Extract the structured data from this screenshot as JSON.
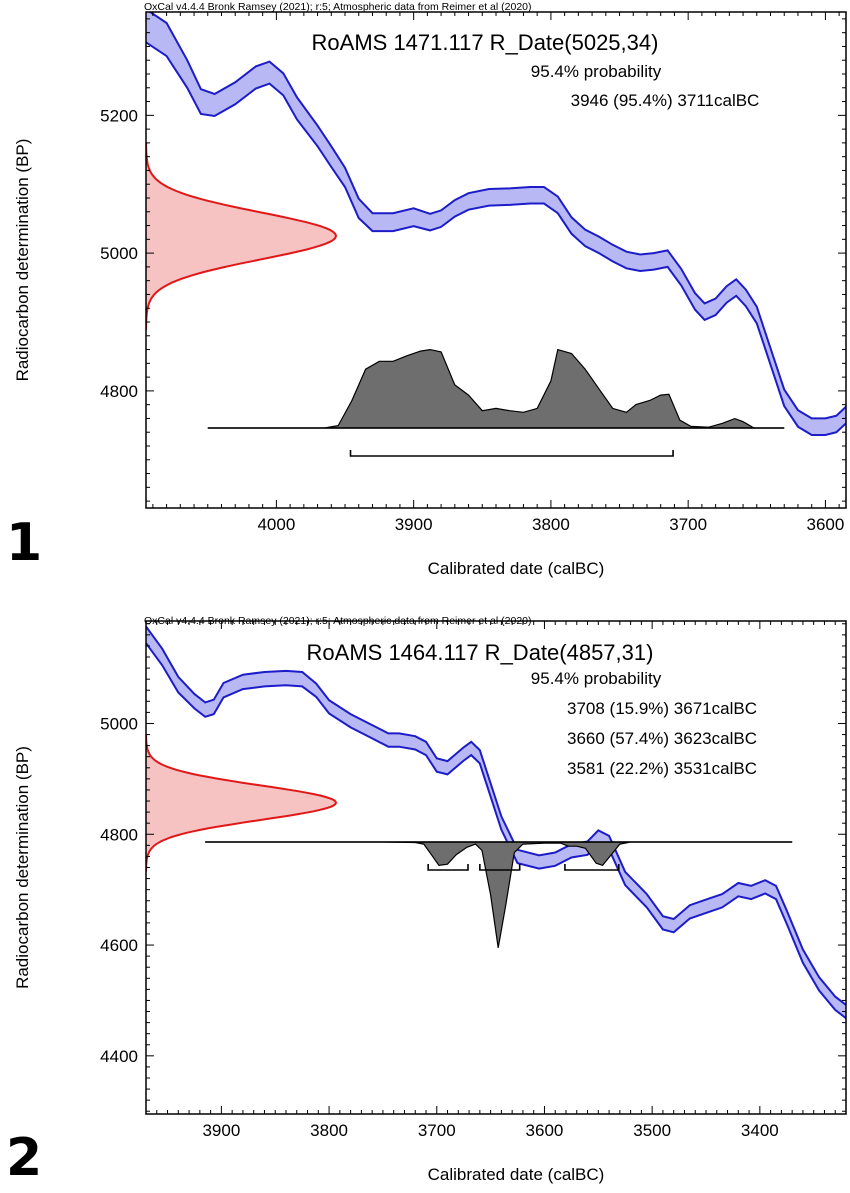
{
  "colors": {
    "curve_fill": "#b8b8f4",
    "curve_stroke": "#1c1cc8",
    "measured_fill": "#f6c2c2",
    "measured_stroke": "#e01818",
    "posterior_fill": "#6e6e6e",
    "frame": "#000000"
  },
  "chart_data": [
    {
      "type": "area",
      "panel_number": "1",
      "header": "OxCal v4.4.4 Bronk Ramsey (2021); r:5; Atmospheric data from Reimer et al (2020)",
      "title": "RoAMS 1471.117 R_Date(5025,34)",
      "probability_heading": "95.4% probability",
      "ranges_text": [
        "3946 (95.4%) 3711calBC"
      ],
      "ranges": [
        {
          "from": 3946,
          "to": 3711,
          "prob": 95.4
        }
      ],
      "xlabel": "Calibrated date (calBC)",
      "ylabel": "Radiocarbon determination (BP)",
      "xlim": [
        4095,
        3585
      ],
      "ylim": [
        4630,
        5350
      ],
      "xticks": [
        4000,
        3900,
        3800,
        3700,
        3600
      ],
      "yticks": [
        4800,
        5000,
        5200
      ],
      "measurement": {
        "mean": 5025,
        "sd": 34,
        "peak_date": 3955
      },
      "calibration_curve": [
        {
          "x": 4095,
          "y": 5330,
          "e": 24
        },
        {
          "x": 4080,
          "y": 5310,
          "e": 24
        },
        {
          "x": 4065,
          "y": 5260,
          "e": 20
        },
        {
          "x": 4055,
          "y": 5220,
          "e": 18
        },
        {
          "x": 4045,
          "y": 5215,
          "e": 16
        },
        {
          "x": 4030,
          "y": 5232,
          "e": 16
        },
        {
          "x": 4015,
          "y": 5255,
          "e": 16
        },
        {
          "x": 4005,
          "y": 5262,
          "e": 16
        },
        {
          "x": 3995,
          "y": 5245,
          "e": 16
        },
        {
          "x": 3985,
          "y": 5210,
          "e": 16
        },
        {
          "x": 3970,
          "y": 5170,
          "e": 15
        },
        {
          "x": 3960,
          "y": 5140,
          "e": 15
        },
        {
          "x": 3950,
          "y": 5110,
          "e": 14
        },
        {
          "x": 3940,
          "y": 5065,
          "e": 14
        },
        {
          "x": 3930,
          "y": 5045,
          "e": 13
        },
        {
          "x": 3915,
          "y": 5045,
          "e": 13
        },
        {
          "x": 3900,
          "y": 5052,
          "e": 13
        },
        {
          "x": 3888,
          "y": 5045,
          "e": 12
        },
        {
          "x": 3880,
          "y": 5050,
          "e": 12
        },
        {
          "x": 3870,
          "y": 5065,
          "e": 12
        },
        {
          "x": 3860,
          "y": 5075,
          "e": 12
        },
        {
          "x": 3845,
          "y": 5081,
          "e": 12
        },
        {
          "x": 3830,
          "y": 5082,
          "e": 12
        },
        {
          "x": 3815,
          "y": 5084,
          "e": 12
        },
        {
          "x": 3805,
          "y": 5084,
          "e": 12
        },
        {
          "x": 3795,
          "y": 5070,
          "e": 12
        },
        {
          "x": 3785,
          "y": 5040,
          "e": 12
        },
        {
          "x": 3775,
          "y": 5022,
          "e": 12
        },
        {
          "x": 3765,
          "y": 5012,
          "e": 12
        },
        {
          "x": 3755,
          "y": 5000,
          "e": 12
        },
        {
          "x": 3745,
          "y": 4990,
          "e": 12
        },
        {
          "x": 3735,
          "y": 4986,
          "e": 12
        },
        {
          "x": 3725,
          "y": 4988,
          "e": 12
        },
        {
          "x": 3715,
          "y": 4992,
          "e": 12
        },
        {
          "x": 3705,
          "y": 4965,
          "e": 12
        },
        {
          "x": 3695,
          "y": 4930,
          "e": 12
        },
        {
          "x": 3688,
          "y": 4915,
          "e": 12
        },
        {
          "x": 3680,
          "y": 4922,
          "e": 12
        },
        {
          "x": 3672,
          "y": 4940,
          "e": 12
        },
        {
          "x": 3665,
          "y": 4950,
          "e": 12
        },
        {
          "x": 3658,
          "y": 4935,
          "e": 12
        },
        {
          "x": 3650,
          "y": 4910,
          "e": 12
        },
        {
          "x": 3640,
          "y": 4850,
          "e": 12
        },
        {
          "x": 3630,
          "y": 4790,
          "e": 12
        },
        {
          "x": 3620,
          "y": 4760,
          "e": 12
        },
        {
          "x": 3610,
          "y": 4748,
          "e": 12
        },
        {
          "x": 3600,
          "y": 4748,
          "e": 12
        },
        {
          "x": 3592,
          "y": 4752,
          "e": 12
        },
        {
          "x": 3585,
          "y": 4765,
          "e": 12
        }
      ],
      "posterior": [
        {
          "x": 4050,
          "y": 0
        },
        {
          "x": 3965,
          "y": 0
        },
        {
          "x": 3955,
          "y": 0.03
        },
        {
          "x": 3945,
          "y": 0.35
        },
        {
          "x": 3935,
          "y": 0.75
        },
        {
          "x": 3925,
          "y": 0.85
        },
        {
          "x": 3915,
          "y": 0.85
        },
        {
          "x": 3905,
          "y": 0.92
        },
        {
          "x": 3895,
          "y": 0.98
        },
        {
          "x": 3888,
          "y": 1.0
        },
        {
          "x": 3880,
          "y": 0.97
        },
        {
          "x": 3870,
          "y": 0.55
        },
        {
          "x": 3860,
          "y": 0.42
        },
        {
          "x": 3850,
          "y": 0.22
        },
        {
          "x": 3840,
          "y": 0.25
        },
        {
          "x": 3830,
          "y": 0.22
        },
        {
          "x": 3820,
          "y": 0.2
        },
        {
          "x": 3810,
          "y": 0.25
        },
        {
          "x": 3800,
          "y": 0.6
        },
        {
          "x": 3795,
          "y": 1.0
        },
        {
          "x": 3785,
          "y": 0.95
        },
        {
          "x": 3775,
          "y": 0.75
        },
        {
          "x": 3765,
          "y": 0.5
        },
        {
          "x": 3755,
          "y": 0.25
        },
        {
          "x": 3745,
          "y": 0.2
        },
        {
          "x": 3738,
          "y": 0.3
        },
        {
          "x": 3728,
          "y": 0.35
        },
        {
          "x": 3720,
          "y": 0.42
        },
        {
          "x": 3714,
          "y": 0.43
        },
        {
          "x": 3706,
          "y": 0.1
        },
        {
          "x": 3698,
          "y": 0.02
        },
        {
          "x": 3685,
          "y": 0.01
        },
        {
          "x": 3675,
          "y": 0.06
        },
        {
          "x": 3666,
          "y": 0.12
        },
        {
          "x": 3660,
          "y": 0.08
        },
        {
          "x": 3652,
          "y": 0.0
        },
        {
          "x": 3630,
          "y": 0
        }
      ],
      "posterior_max_bp": 230
    },
    {
      "type": "area",
      "panel_number": "2",
      "header": "OxCal v4.4.4 Bronk Ramsey (2021); r:5; Atmospheric data from Reimer et al (2020)",
      "title": "RoAMS 1464.117 R_Date(4857,31)",
      "probability_heading": "95.4% probability",
      "ranges_text": [
        "3708 (15.9%) 3671calBC",
        "3660 (57.4%) 3623calBC",
        "3581 (22.2%) 3531calBC"
      ],
      "ranges": [
        {
          "from": 3708,
          "to": 3671,
          "prob": 15.9
        },
        {
          "from": 3660,
          "to": 3623,
          "prob": 57.4
        },
        {
          "from": 3581,
          "to": 3531,
          "prob": 22.2
        }
      ],
      "xlabel": "Calibrated date (calBC)",
      "ylabel": "Radiocarbon determination (BP)",
      "xlim": [
        3970,
        3320
      ],
      "ylim": [
        4295,
        5185
      ],
      "xticks": [
        3900,
        3800,
        3700,
        3600,
        3500,
        3400
      ],
      "yticks": [
        4400,
        4600,
        4800,
        5000
      ],
      "measurement": {
        "mean": 4857,
        "sd": 31,
        "peak_date": 3805
      },
      "calibration_curve": [
        {
          "x": 3970,
          "y": 5160,
          "e": 15
        },
        {
          "x": 3955,
          "y": 5120,
          "e": 15
        },
        {
          "x": 3940,
          "y": 5070,
          "e": 14
        },
        {
          "x": 3925,
          "y": 5040,
          "e": 13
        },
        {
          "x": 3915,
          "y": 5025,
          "e": 13
        },
        {
          "x": 3907,
          "y": 5030,
          "e": 13
        },
        {
          "x": 3898,
          "y": 5060,
          "e": 13
        },
        {
          "x": 3880,
          "y": 5075,
          "e": 13
        },
        {
          "x": 3860,
          "y": 5080,
          "e": 13
        },
        {
          "x": 3840,
          "y": 5082,
          "e": 13
        },
        {
          "x": 3825,
          "y": 5080,
          "e": 13
        },
        {
          "x": 3812,
          "y": 5060,
          "e": 12
        },
        {
          "x": 3800,
          "y": 5030,
          "e": 12
        },
        {
          "x": 3780,
          "y": 5005,
          "e": 12
        },
        {
          "x": 3760,
          "y": 4985,
          "e": 12
        },
        {
          "x": 3745,
          "y": 4970,
          "e": 12
        },
        {
          "x": 3735,
          "y": 4970,
          "e": 12
        },
        {
          "x": 3720,
          "y": 4965,
          "e": 12
        },
        {
          "x": 3710,
          "y": 4955,
          "e": 12
        },
        {
          "x": 3700,
          "y": 4925,
          "e": 12
        },
        {
          "x": 3690,
          "y": 4920,
          "e": 12
        },
        {
          "x": 3675,
          "y": 4945,
          "e": 12
        },
        {
          "x": 3668,
          "y": 4955,
          "e": 12
        },
        {
          "x": 3660,
          "y": 4940,
          "e": 12
        },
        {
          "x": 3650,
          "y": 4880,
          "e": 12
        },
        {
          "x": 3640,
          "y": 4820,
          "e": 12
        },
        {
          "x": 3625,
          "y": 4760,
          "e": 12
        },
        {
          "x": 3605,
          "y": 4750,
          "e": 12
        },
        {
          "x": 3590,
          "y": 4755,
          "e": 12
        },
        {
          "x": 3575,
          "y": 4770,
          "e": 12
        },
        {
          "x": 3560,
          "y": 4775,
          "e": 12
        },
        {
          "x": 3550,
          "y": 4795,
          "e": 12
        },
        {
          "x": 3540,
          "y": 4785,
          "e": 12
        },
        {
          "x": 3525,
          "y": 4720,
          "e": 12
        },
        {
          "x": 3505,
          "y": 4680,
          "e": 12
        },
        {
          "x": 3490,
          "y": 4640,
          "e": 12
        },
        {
          "x": 3480,
          "y": 4635,
          "e": 12
        },
        {
          "x": 3465,
          "y": 4660,
          "e": 12
        },
        {
          "x": 3450,
          "y": 4670,
          "e": 12
        },
        {
          "x": 3435,
          "y": 4680,
          "e": 12
        },
        {
          "x": 3420,
          "y": 4700,
          "e": 12
        },
        {
          "x": 3408,
          "y": 4695,
          "e": 12
        },
        {
          "x": 3395,
          "y": 4705,
          "e": 12
        },
        {
          "x": 3385,
          "y": 4695,
          "e": 12
        },
        {
          "x": 3375,
          "y": 4650,
          "e": 12
        },
        {
          "x": 3360,
          "y": 4580,
          "e": 12
        },
        {
          "x": 3345,
          "y": 4530,
          "e": 12
        },
        {
          "x": 3330,
          "y": 4495,
          "e": 12
        },
        {
          "x": 3320,
          "y": 4480,
          "e": 12
        }
      ],
      "posterior": [
        {
          "x": 3915,
          "y": 0
        },
        {
          "x": 3750,
          "y": 0
        },
        {
          "x": 3720,
          "y": 0.005
        },
        {
          "x": 3712,
          "y": 0.02
        },
        {
          "x": 3705,
          "y": 0.12
        },
        {
          "x": 3698,
          "y": 0.22
        },
        {
          "x": 3690,
          "y": 0.21
        },
        {
          "x": 3682,
          "y": 0.12
        },
        {
          "x": 3672,
          "y": 0.05
        },
        {
          "x": 3664,
          "y": 0.02
        },
        {
          "x": 3658,
          "y": 0.08
        },
        {
          "x": 3650,
          "y": 0.5
        },
        {
          "x": 3643,
          "y": 1.0
        },
        {
          "x": 3636,
          "y": 0.6
        },
        {
          "x": 3628,
          "y": 0.1
        },
        {
          "x": 3620,
          "y": 0.02
        },
        {
          "x": 3600,
          "y": 0.01
        },
        {
          "x": 3585,
          "y": 0.01
        },
        {
          "x": 3578,
          "y": 0.04
        },
        {
          "x": 3570,
          "y": 0.04
        },
        {
          "x": 3562,
          "y": 0.06
        },
        {
          "x": 3552,
          "y": 0.2
        },
        {
          "x": 3546,
          "y": 0.22
        },
        {
          "x": 3538,
          "y": 0.12
        },
        {
          "x": 3530,
          "y": 0.02
        },
        {
          "x": 3520,
          "y": 0
        },
        {
          "x": 3370,
          "y": 0
        }
      ],
      "posterior_max_bp": 300
    }
  ]
}
